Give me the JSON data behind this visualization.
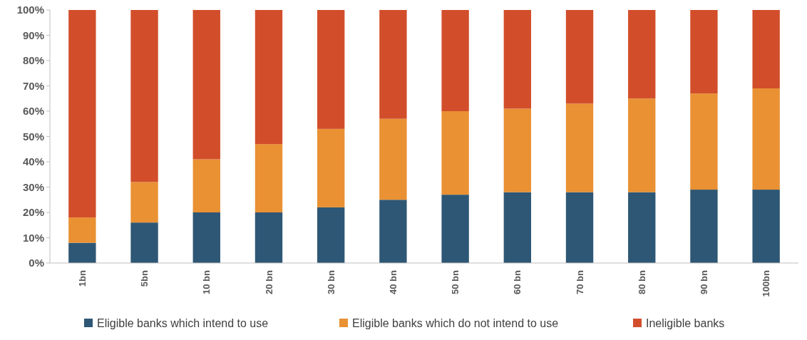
{
  "chart_data": {
    "type": "bar",
    "stacked": true,
    "categories": [
      "1bn",
      "5bn",
      "10 bn",
      "20 bn",
      "30 bn",
      "40 bn",
      "50 bn",
      "60 bn",
      "70 bn",
      "80 bn",
      "90 bn",
      "100bn"
    ],
    "series": [
      {
        "name": "Eligible banks which intend to use",
        "color": "#2e5775",
        "values": [
          8,
          16,
          20,
          20,
          22,
          25,
          27,
          28,
          28,
          28,
          29,
          29
        ]
      },
      {
        "name": "Eligible banks which do not intend to use",
        "color": "#e99133",
        "values": [
          10,
          16,
          21,
          27,
          31,
          32,
          33,
          33,
          35,
          37,
          38,
          40
        ]
      },
      {
        "name": "Ineligible banks",
        "color": "#d24e2b",
        "values": [
          82,
          68,
          59,
          53,
          47,
          43,
          40,
          39,
          37,
          35,
          33,
          31
        ]
      }
    ],
    "ylim": [
      0,
      100
    ],
    "yticks": [
      {
        "value": 0,
        "label": "0%"
      },
      {
        "value": 10,
        "label": "10%"
      },
      {
        "value": 20,
        "label": "20%"
      },
      {
        "value": 30,
        "label": "30%"
      },
      {
        "value": 40,
        "label": "40%"
      },
      {
        "value": 50,
        "label": "50%"
      },
      {
        "value": 60,
        "label": "60%"
      },
      {
        "value": 70,
        "label": "70%"
      },
      {
        "value": 80,
        "label": "80%"
      },
      {
        "value": 90,
        "label": "90%"
      },
      {
        "value": 100,
        "label": "100%"
      }
    ],
    "legend": "bottom"
  }
}
